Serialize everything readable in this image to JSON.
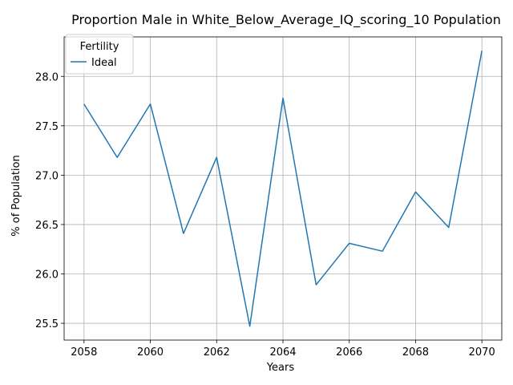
{
  "chart_data": {
    "type": "line",
    "title": "Proportion Male in White_Below_Average_IQ_scoring_10 Population",
    "xlabel": "Years",
    "ylabel": "% of Population",
    "x": [
      2058,
      2059,
      2060,
      2061,
      2062,
      2063,
      2064,
      2065,
      2066,
      2067,
      2068,
      2069,
      2070
    ],
    "series": [
      {
        "name": "Ideal",
        "color": "#1f77b4",
        "values": [
          27.72,
          27.18,
          27.72,
          26.41,
          27.18,
          25.47,
          27.78,
          25.89,
          26.31,
          26.23,
          26.83,
          26.47,
          28.26
        ]
      }
    ],
    "xlim": [
      2057.4,
      2070.6
    ],
    "ylim": [
      25.33,
      28.4
    ],
    "xticks": [
      2058,
      2060,
      2062,
      2064,
      2066,
      2068,
      2070
    ],
    "yticks": [
      "25.5",
      "26.0",
      "26.5",
      "27.0",
      "27.5",
      "28.0"
    ],
    "grid": true,
    "legend": {
      "title": "Fertility",
      "position": "top-left"
    }
  }
}
